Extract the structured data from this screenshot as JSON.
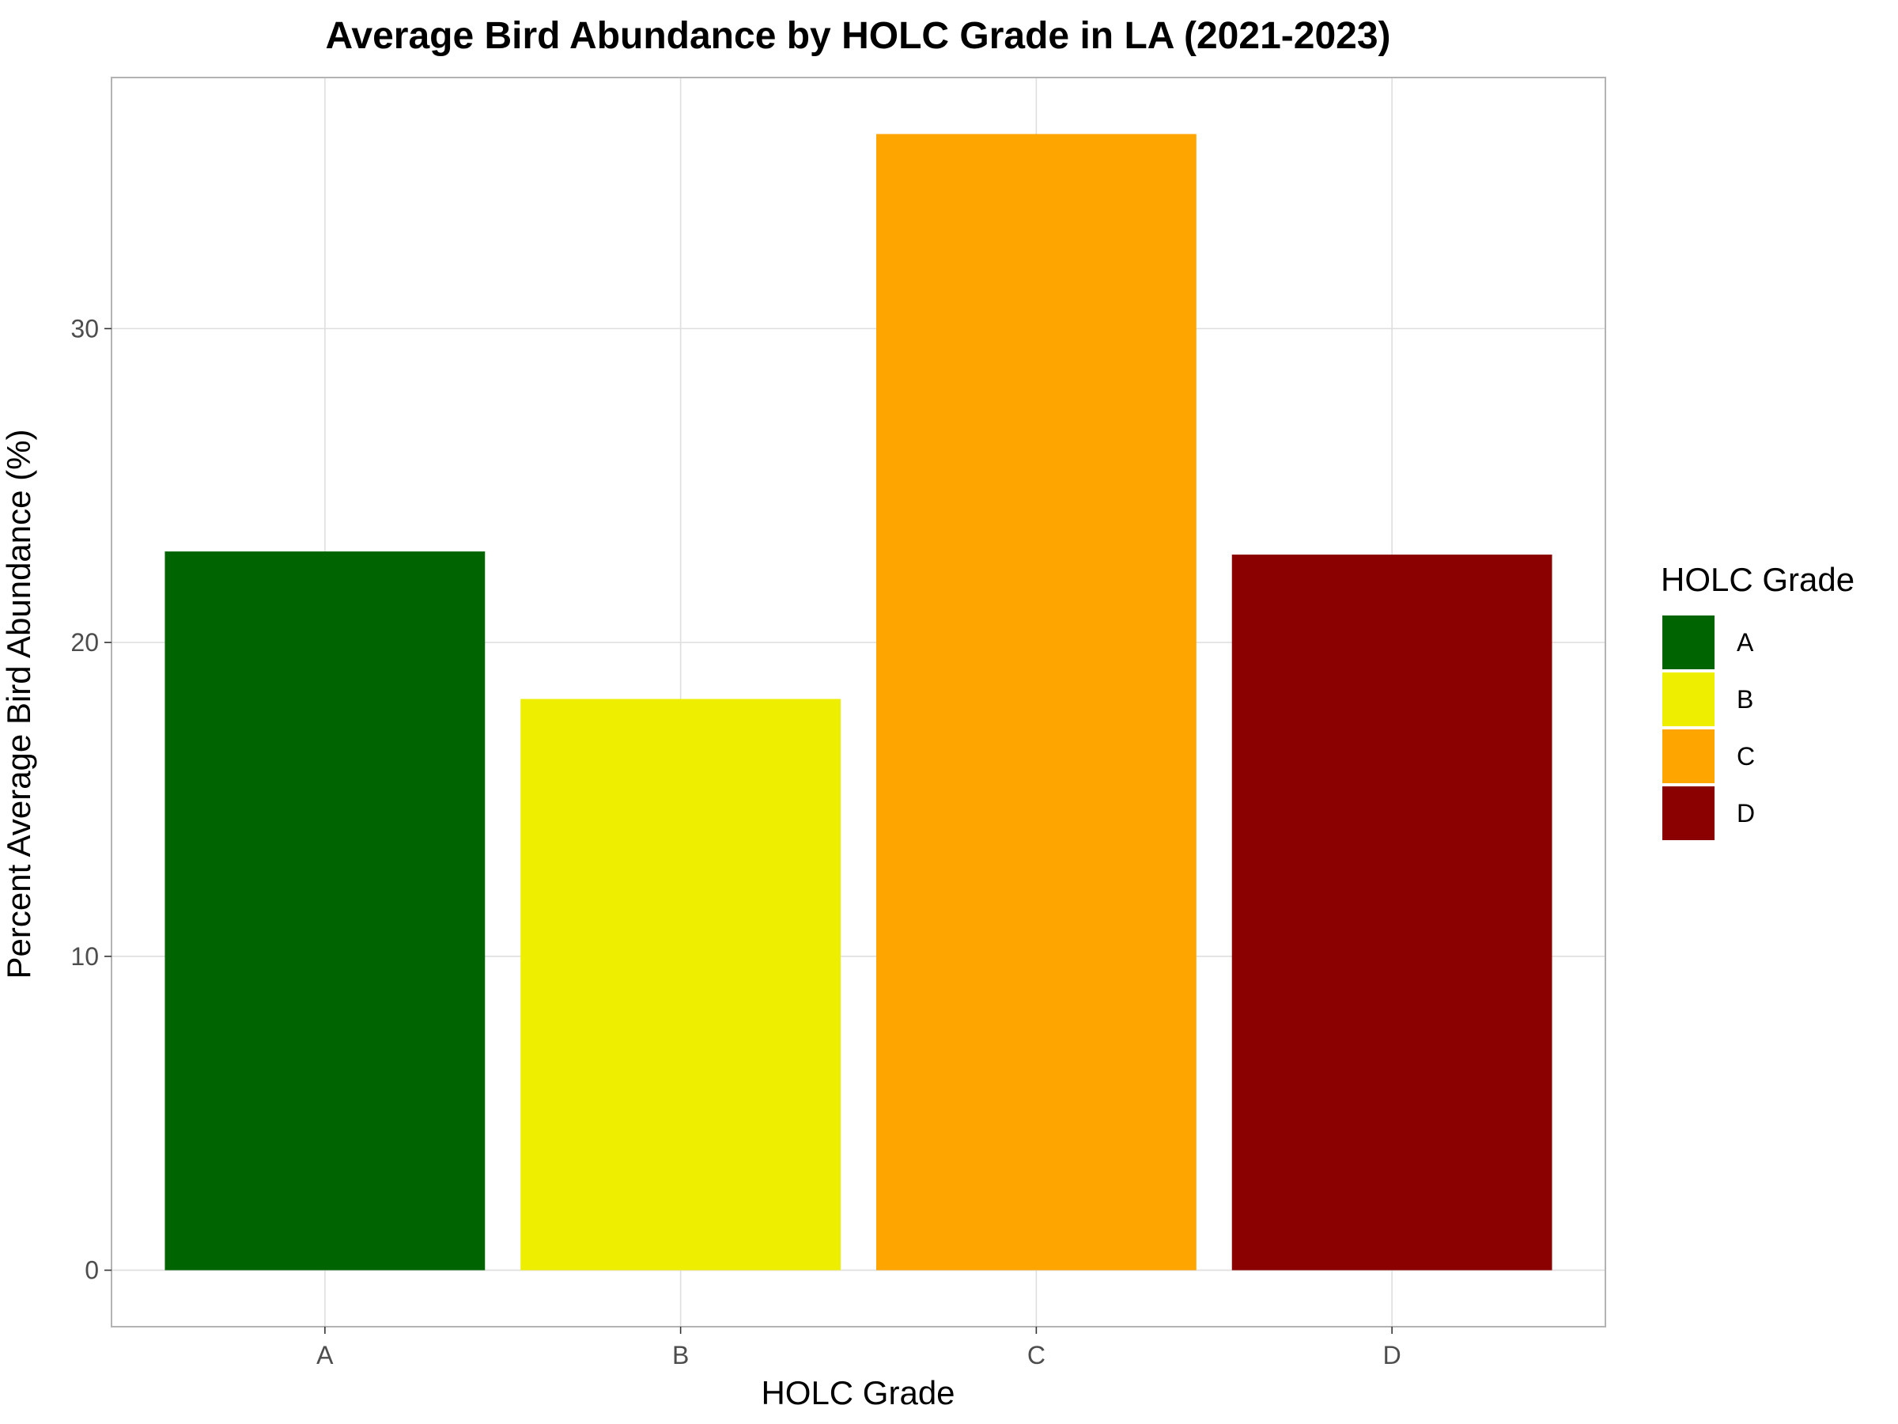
{
  "chart_data": {
    "type": "bar",
    "title": "Average Bird Abundance by HOLC Grade in LA (2021-2023)",
    "xlabel": "HOLC Grade",
    "ylabel": "Percent Average Bird Abundance (%)",
    "categories": [
      "A",
      "B",
      "C",
      "D"
    ],
    "values": [
      22.9,
      18.2,
      36.2,
      22.8
    ],
    "colors": [
      "#006400",
      "#EEEE00",
      "#FFA500",
      "#8B0000"
    ],
    "yticks": [
      0,
      10,
      20,
      30
    ],
    "ylim": [
      -1.8,
      38.0
    ],
    "grid": true,
    "legend": {
      "title": "HOLC Grade",
      "position": "right",
      "items": [
        "A",
        "B",
        "C",
        "D"
      ]
    }
  }
}
